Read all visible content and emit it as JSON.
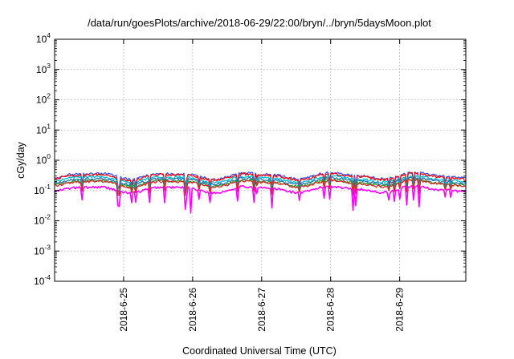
{
  "chart_data": {
    "type": "line",
    "title": "/data/run/goesPlots/archive/2018-06-29/22:00/bryn/../bryn/5daysMoon.plot",
    "xlabel": "Coordinated Universal Time (UTC)",
    "ylabel": "cGy/day",
    "yscale": "log",
    "ylim": [
      0.0001,
      10000
    ],
    "yticks": [
      {
        "base": "10",
        "exp": "-4"
      },
      {
        "base": "10",
        "exp": "-3"
      },
      {
        "base": "10",
        "exp": "-2"
      },
      {
        "base": "10",
        "exp": "-1"
      },
      {
        "base": "10",
        "exp": "0"
      },
      {
        "base": "10",
        "exp": "1"
      },
      {
        "base": "10",
        "exp": "2"
      },
      {
        "base": "10",
        "exp": "3"
      },
      {
        "base": "10",
        "exp": "4"
      }
    ],
    "xlim": [
      "2018-06-24T00:00",
      "2018-06-29T23:00"
    ],
    "xticks": [
      "2018-6-25",
      "2018-6-26",
      "2018-6-27",
      "2018-6-28",
      "2018-6-29"
    ],
    "grid": true,
    "legend": "none",
    "series": [
      {
        "color": "#ff00ff",
        "base": 0.11,
        "spike_date": "2018-06-25T23:30",
        "spike_value": 0.018
      },
      {
        "color": "#d62728",
        "base": 0.17
      },
      {
        "color": "#2ca02c",
        "base": 0.18
      },
      {
        "color": "#1f77b4",
        "base": 0.21
      },
      {
        "color": "#ff0000",
        "base": 0.29
      },
      {
        "color": "#00bcd4",
        "base": 0.24
      },
      {
        "color": "#3355ff",
        "base": 0.31
      }
    ]
  }
}
